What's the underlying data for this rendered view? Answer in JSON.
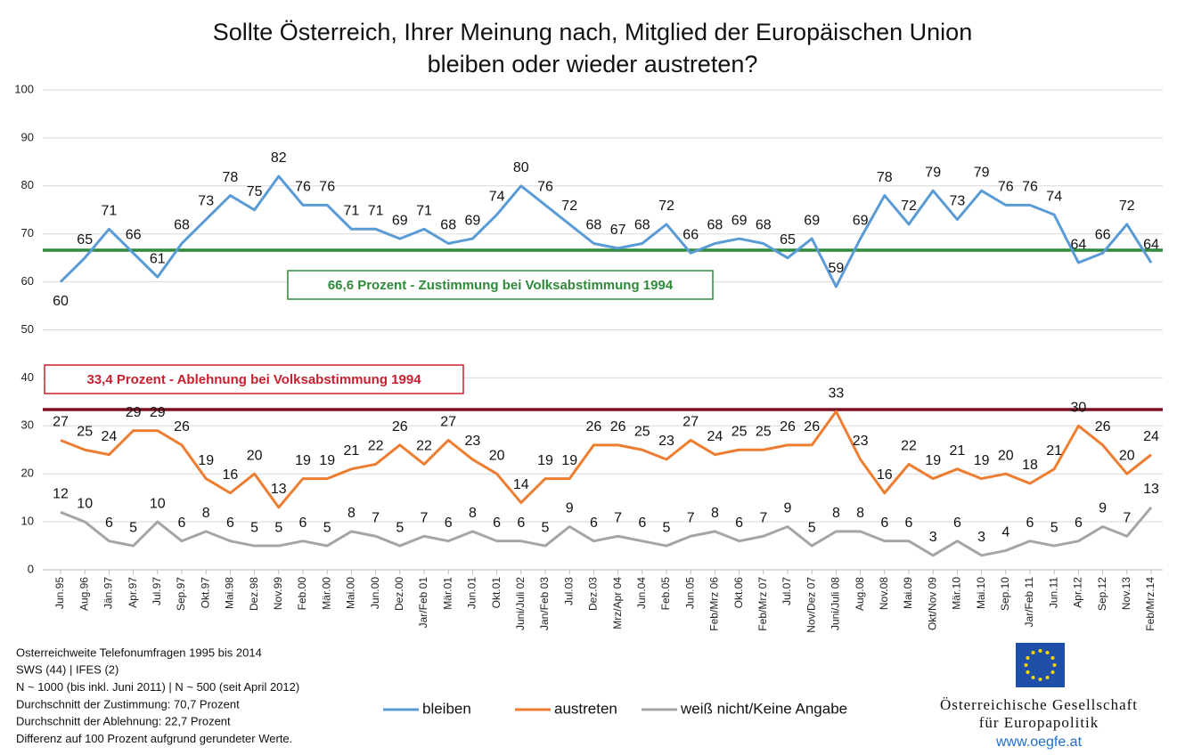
{
  "chart_data": {
    "type": "line",
    "title": [
      "Sollte Österreich, Ihrer Meinung nach, Mitglied der Europäischen Union",
      "bleiben oder wieder austreten?"
    ],
    "categories": [
      "Jun.95",
      "Aug.96",
      "Jän.97",
      "Apr.97",
      "Jul.97",
      "Sep.97",
      "Okt.97",
      "Mai.98",
      "Dez.98",
      "Nov.99",
      "Feb.00",
      "Mär.00",
      "Mai.00",
      "Jun.00",
      "Dez.00",
      "Jar/Feb 01",
      "Mär.01",
      "Jun.01",
      "Okt.01",
      "Juni/Juli 02",
      "Jan/Feb 03",
      "Jul.03",
      "Dez.03",
      "Mrz/Apr 04",
      "Jun.04",
      "Feb.05",
      "Jun.05",
      "Feb/Mrz 06",
      "Okt.06",
      "Feb/Mrz 07",
      "Jul.07",
      "Nov/Dez 07",
      "Juni/Juli 08",
      "Aug.08",
      "Nov.08",
      "Mai.09",
      "Okt/Nov 09",
      "Mär.10",
      "Mai.10",
      "Sep.10",
      "Jar/Feb 11",
      "Jun.11",
      "Apr.12",
      "Sep.12",
      "Nov.13",
      "Feb/Mrz.14"
    ],
    "series": [
      {
        "name": "bleiben",
        "color": "#5b9bd5",
        "values": [
          60,
          65,
          71,
          66,
          61,
          68,
          73,
          78,
          75,
          82,
          76,
          76,
          71,
          71,
          69,
          71,
          68,
          69,
          74,
          80,
          76,
          72,
          68,
          67,
          68,
          72,
          66,
          68,
          69,
          68,
          65,
          69,
          59,
          69,
          78,
          72,
          79,
          73,
          79,
          76,
          76,
          74,
          64,
          66,
          72,
          64
        ]
      },
      {
        "name": "austreten",
        "color": "#ed7d31",
        "values": [
          27,
          25,
          24,
          29,
          29,
          26,
          19,
          16,
          20,
          13,
          19,
          19,
          21,
          22,
          26,
          22,
          27,
          23,
          20,
          14,
          19,
          19,
          26,
          26,
          25,
          23,
          27,
          24,
          25,
          25,
          26,
          26,
          33,
          23,
          16,
          22,
          19,
          21,
          19,
          20,
          18,
          21,
          30,
          26,
          20,
          24
        ]
      },
      {
        "name": "weiß nicht/Keine Angabe",
        "color": "#a5a5a5",
        "values": [
          12,
          10,
          6,
          5,
          10,
          6,
          8,
          6,
          5,
          5,
          6,
          5,
          8,
          7,
          5,
          7,
          6,
          8,
          6,
          6,
          5,
          9,
          6,
          7,
          6,
          5,
          7,
          8,
          6,
          7,
          9,
          5,
          8,
          8,
          6,
          6,
          3,
          6,
          3,
          4,
          6,
          5,
          6,
          9,
          7,
          13
        ]
      }
    ],
    "ylim": [
      0,
      100
    ],
    "yticks": [
      0,
      10,
      20,
      30,
      40,
      50,
      60,
      70,
      80,
      90,
      100
    ],
    "grid": true,
    "reference_lines": [
      {
        "value": 66.6,
        "label": "66,6 Prozent - Zustimmung bei Volksabstimmung 1994",
        "color": "#2e8b3a"
      },
      {
        "value": 33.4,
        "label": "33,4 Prozent - Ablehnung bei Volksabstimmung 1994",
        "color": "#7a1020",
        "label_color": "#c8202e"
      }
    ],
    "legend": "bottom",
    "footnotes": [
      "Osterreichweite Telefonumfragen 1995 bis 2014",
      "SWS (44) | IFES (2)",
      "N ~ 1000 (bis inkl. Juni 2011) | N ~ 500 (seit April 2012)",
      "Durchschnitt der Zustimmung: 70,7 Prozent",
      "Durchschnitt der Ablehnung: 22,7 Prozent",
      "Differenz auf 100 Prozent aufgrund gerundeter Werte."
    ],
    "logo": [
      "Österreichische Gesellschaft",
      "für Europapolitik",
      "www.oegfe.at"
    ]
  }
}
